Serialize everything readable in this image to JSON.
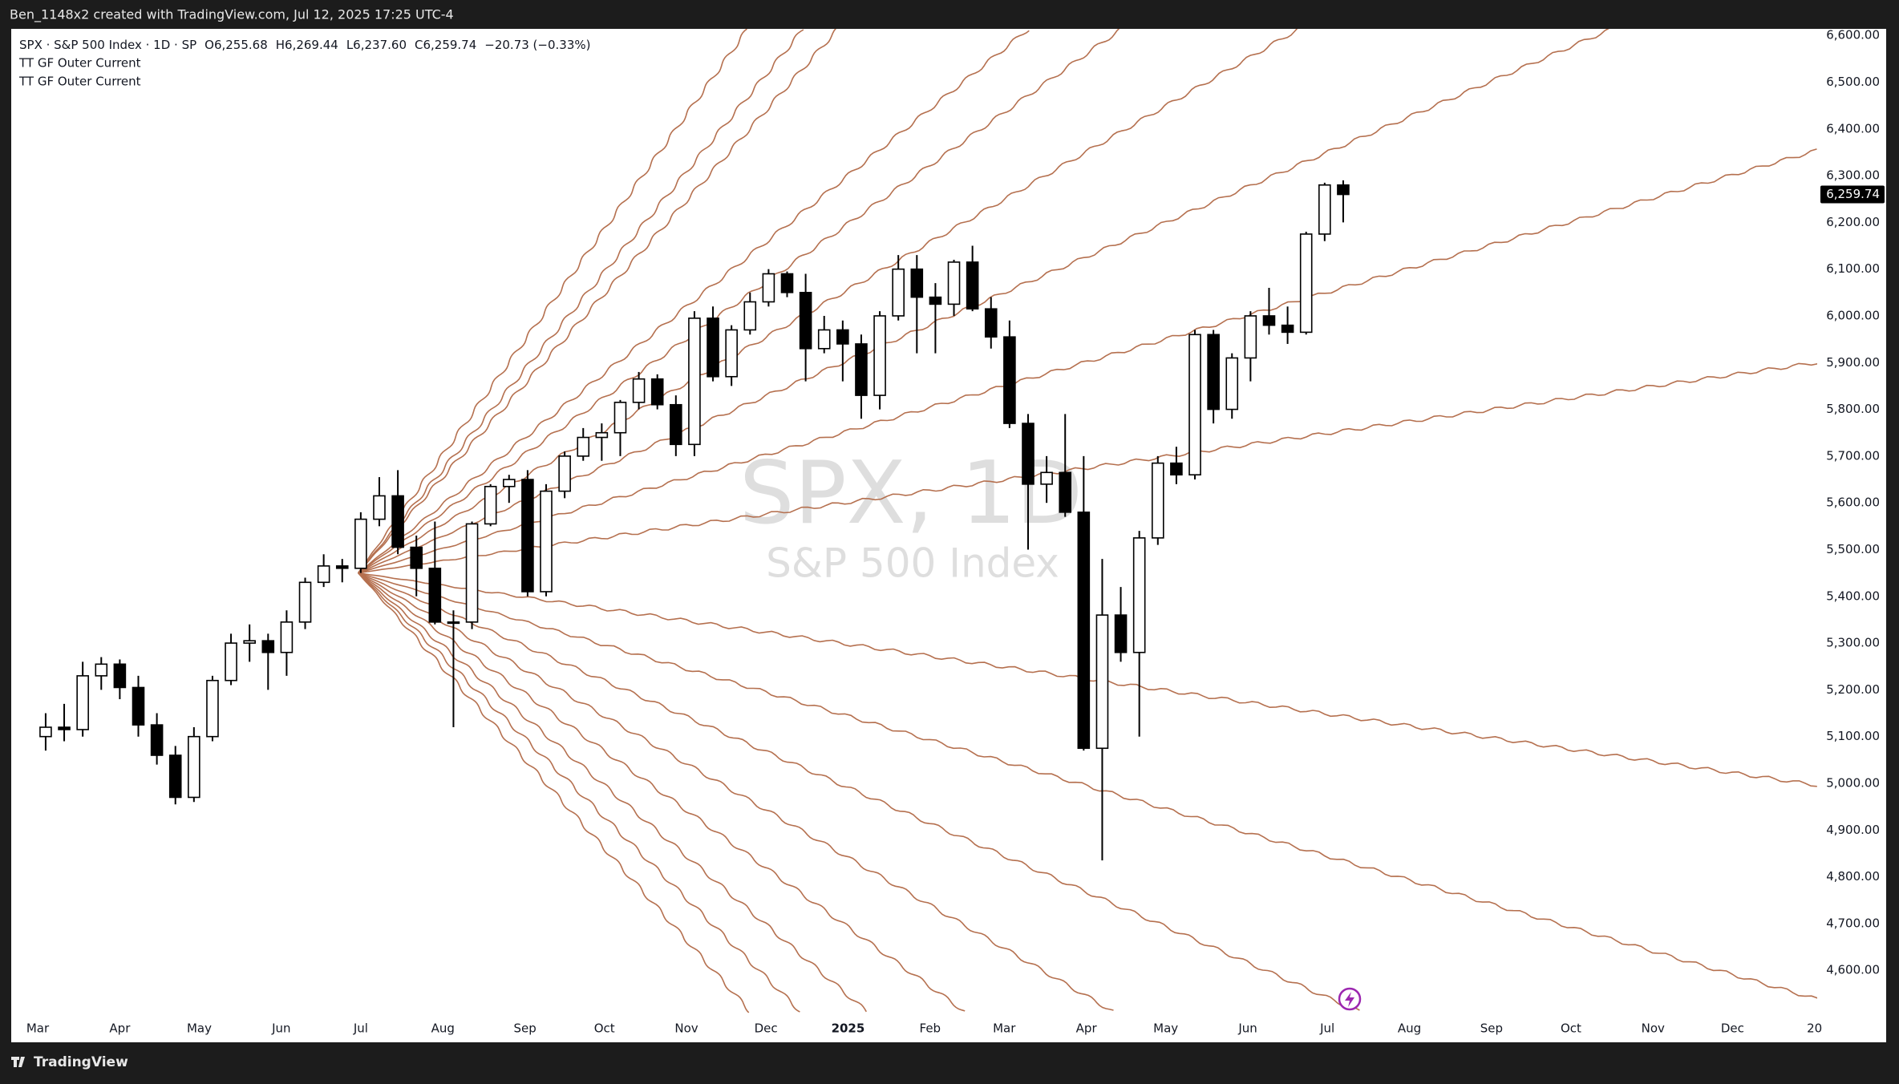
{
  "chart_data": {
    "type": "candlestick",
    "attribution": "Ben_1148x2 created with TradingView.com, Jul 12, 2025 17:25 UTC-4",
    "legend": {
      "symbol": "SPX · S&P 500 Index · 1D · SP",
      "ohlc": [
        "O6,255.68",
        "H6,269.44",
        "L6,237.60",
        "C6,259.74"
      ],
      "change": "−20.73 (−0.33%)"
    },
    "indicators": [
      "TT GF Outer Current",
      "TT GF Outer Current"
    ],
    "watermark": {
      "symbol": "SPX, 1D",
      "description": "S&P 500 Index"
    },
    "footer": "TradingView",
    "color": "#000000",
    "fan_color": "#b5704f",
    "xlim": [
      -10,
      672
    ],
    "ylim": [
      4506,
      6614
    ],
    "xticks": [
      {
        "value": 0,
        "label": "Mar"
      },
      {
        "value": 31,
        "label": "Apr"
      },
      {
        "value": 61,
        "label": "May"
      },
      {
        "value": 92,
        "label": "Jun"
      },
      {
        "value": 122,
        "label": "Jul"
      },
      {
        "value": 153,
        "label": "Aug"
      },
      {
        "value": 184,
        "label": "Sep"
      },
      {
        "value": 214,
        "label": "Oct"
      },
      {
        "value": 245,
        "label": "Nov"
      },
      {
        "value": 275,
        "label": "Dec"
      },
      {
        "value": 306,
        "label": "2025"
      },
      {
        "value": 337,
        "label": "Feb"
      },
      {
        "value": 365,
        "label": "Mar"
      },
      {
        "value": 396,
        "label": "Apr"
      },
      {
        "value": 426,
        "label": "May"
      },
      {
        "value": 457,
        "label": "Jun"
      },
      {
        "value": 487,
        "label": "Jul"
      },
      {
        "value": 518,
        "label": "Aug"
      },
      {
        "value": 549,
        "label": "Sep"
      },
      {
        "value": 579,
        "label": "Oct"
      },
      {
        "value": 610,
        "label": "Nov"
      },
      {
        "value": 640,
        "label": "Dec"
      },
      {
        "value": 671,
        "label": "20"
      }
    ],
    "yticks": [
      {
        "value": 4600,
        "label": "4,600.00"
      },
      {
        "value": 4700,
        "label": "4,700.00"
      },
      {
        "value": 4800,
        "label": "4,800.00"
      },
      {
        "value": 4900,
        "label": "4,900.00"
      },
      {
        "value": 5000,
        "label": "5,000.00"
      },
      {
        "value": 5100,
        "label": "5,100.00"
      },
      {
        "value": 5200,
        "label": "5,200.00"
      },
      {
        "value": 5300,
        "label": "5,300.00"
      },
      {
        "value": 5400,
        "label": "5,400.00"
      },
      {
        "value": 5500,
        "label": "5,500.00"
      },
      {
        "value": 5600,
        "label": "5,600.00"
      },
      {
        "value": 5700,
        "label": "5,700.00"
      },
      {
        "value": 5800,
        "label": "5,800.00"
      },
      {
        "value": 5900,
        "label": "5,900.00"
      },
      {
        "value": 6000,
        "label": "6,000.00"
      },
      {
        "value": 6100,
        "label": "6,100.00"
      },
      {
        "value": 6200,
        "label": "6,200.00"
      },
      {
        "value": 6300,
        "label": "6,300.00"
      },
      {
        "value": 6400,
        "label": "6,400.00"
      },
      {
        "value": 6500,
        "label": "6,500.00"
      },
      {
        "value": 6600,
        "label": "6,600.00"
      }
    ],
    "last_price": {
      "value": 6259.74,
      "label": "6,259.74"
    },
    "x": [
      3,
      10,
      17,
      24,
      31,
      38,
      45,
      52,
      59,
      66,
      73,
      80,
      87,
      94,
      101,
      108,
      115,
      122,
      129,
      136,
      143,
      150,
      157,
      164,
      171,
      178,
      185,
      192,
      199,
      206,
      213,
      220,
      227,
      234,
      241,
      248,
      255,
      262,
      269,
      276,
      283,
      290,
      297,
      304,
      311,
      318,
      325,
      332,
      339,
      346,
      353,
      360,
      367,
      374,
      381,
      388,
      395,
      402,
      409,
      416,
      423,
      430,
      437,
      444,
      451,
      458,
      465,
      472,
      479,
      486,
      493
    ],
    "open": [
      5100,
      5120,
      5115,
      5230,
      5255,
      5205,
      5125,
      5060,
      4970,
      5100,
      5220,
      5300,
      5305,
      5280,
      5345,
      5430,
      5465,
      5460,
      5565,
      5615,
      5505,
      5460,
      5345,
      5345,
      5555,
      5635,
      5650,
      5410,
      5625,
      5700,
      5740,
      5750,
      5815,
      5865,
      5810,
      5725,
      5995,
      5870,
      5970,
      6030,
      6090,
      6050,
      5930,
      5970,
      5940,
      5830,
      6000,
      6100,
      6040,
      6025,
      6115,
      6015,
      5955,
      5770,
      5640,
      5665,
      5580,
      5075,
      5360,
      5280,
      5525,
      5685,
      5660,
      5960,
      5800,
      5910,
      6000,
      5980,
      5965,
      6175,
      6280
    ],
    "high": [
      5150,
      5170,
      5260,
      5270,
      5265,
      5230,
      5150,
      5080,
      5120,
      5230,
      5320,
      5340,
      5320,
      5370,
      5440,
      5490,
      5480,
      5580,
      5655,
      5670,
      5530,
      5560,
      5370,
      5560,
      5640,
      5660,
      5670,
      5640,
      5710,
      5760,
      5770,
      5820,
      5880,
      5875,
      5830,
      6010,
      6020,
      5980,
      6050,
      6100,
      6095,
      6090,
      6000,
      5990,
      5960,
      6010,
      6130,
      6130,
      6070,
      6120,
      6150,
      6040,
      5990,
      5790,
      5700,
      5790,
      5700,
      5480,
      5420,
      5540,
      5700,
      5720,
      5970,
      5970,
      5920,
      6010,
      6060,
      6020,
      6180,
      6285,
      6290
    ],
    "low": [
      5070,
      5090,
      5100,
      5200,
      5180,
      5100,
      5040,
      4955,
      4960,
      5090,
      5210,
      5260,
      5200,
      5230,
      5330,
      5420,
      5430,
      5450,
      5550,
      5490,
      5400,
      5340,
      5120,
      5330,
      5550,
      5600,
      5400,
      5400,
      5610,
      5690,
      5690,
      5700,
      5800,
      5800,
      5700,
      5700,
      5860,
      5850,
      5960,
      6020,
      6040,
      5860,
      5920,
      5860,
      5780,
      5800,
      5990,
      5920,
      5920,
      6000,
      6010,
      5930,
      5760,
      5500,
      5600,
      5570,
      5070,
      4835,
      5260,
      5100,
      5510,
      5640,
      5650,
      5770,
      5780,
      5860,
      5960,
      5940,
      5960,
      6160,
      6200
    ],
    "close": [
      5120,
      5115,
      5230,
      5255,
      5205,
      5125,
      5060,
      4970,
      5100,
      5220,
      5300,
      5305,
      5280,
      5345,
      5430,
      5465,
      5460,
      5565,
      5615,
      5505,
      5460,
      5345,
      5345,
      5555,
      5635,
      5650,
      5410,
      5625,
      5700,
      5740,
      5750,
      5815,
      5865,
      5810,
      5725,
      5995,
      5870,
      5970,
      6030,
      6090,
      6050,
      5930,
      5970,
      5940,
      5830,
      6000,
      6100,
      6040,
      6025,
      6115,
      6015,
      5955,
      5770,
      5640,
      5665,
      5580,
      5075,
      5360,
      5280,
      5525,
      5685,
      5660,
      5960,
      5800,
      5910,
      6000,
      5980,
      5965,
      6175,
      6280,
      6259.74
    ],
    "fan_origin": [
      121,
      5450
    ],
    "fan_ends": [
      [
        268,
        6613
      ],
      [
        289,
        6613
      ],
      [
        302,
        6613
      ],
      [
        374,
        6613
      ],
      [
        409,
        6613
      ],
      [
        476,
        6613
      ],
      [
        594,
        6613
      ],
      [
        672,
        6354
      ],
      [
        672,
        5900
      ],
      [
        672,
        4996
      ],
      [
        672,
        4538
      ],
      [
        499,
        4512
      ],
      [
        406,
        4512
      ],
      [
        350,
        4512
      ],
      [
        313,
        4512
      ],
      [
        288,
        4512
      ],
      [
        269,
        4512
      ]
    ]
  }
}
